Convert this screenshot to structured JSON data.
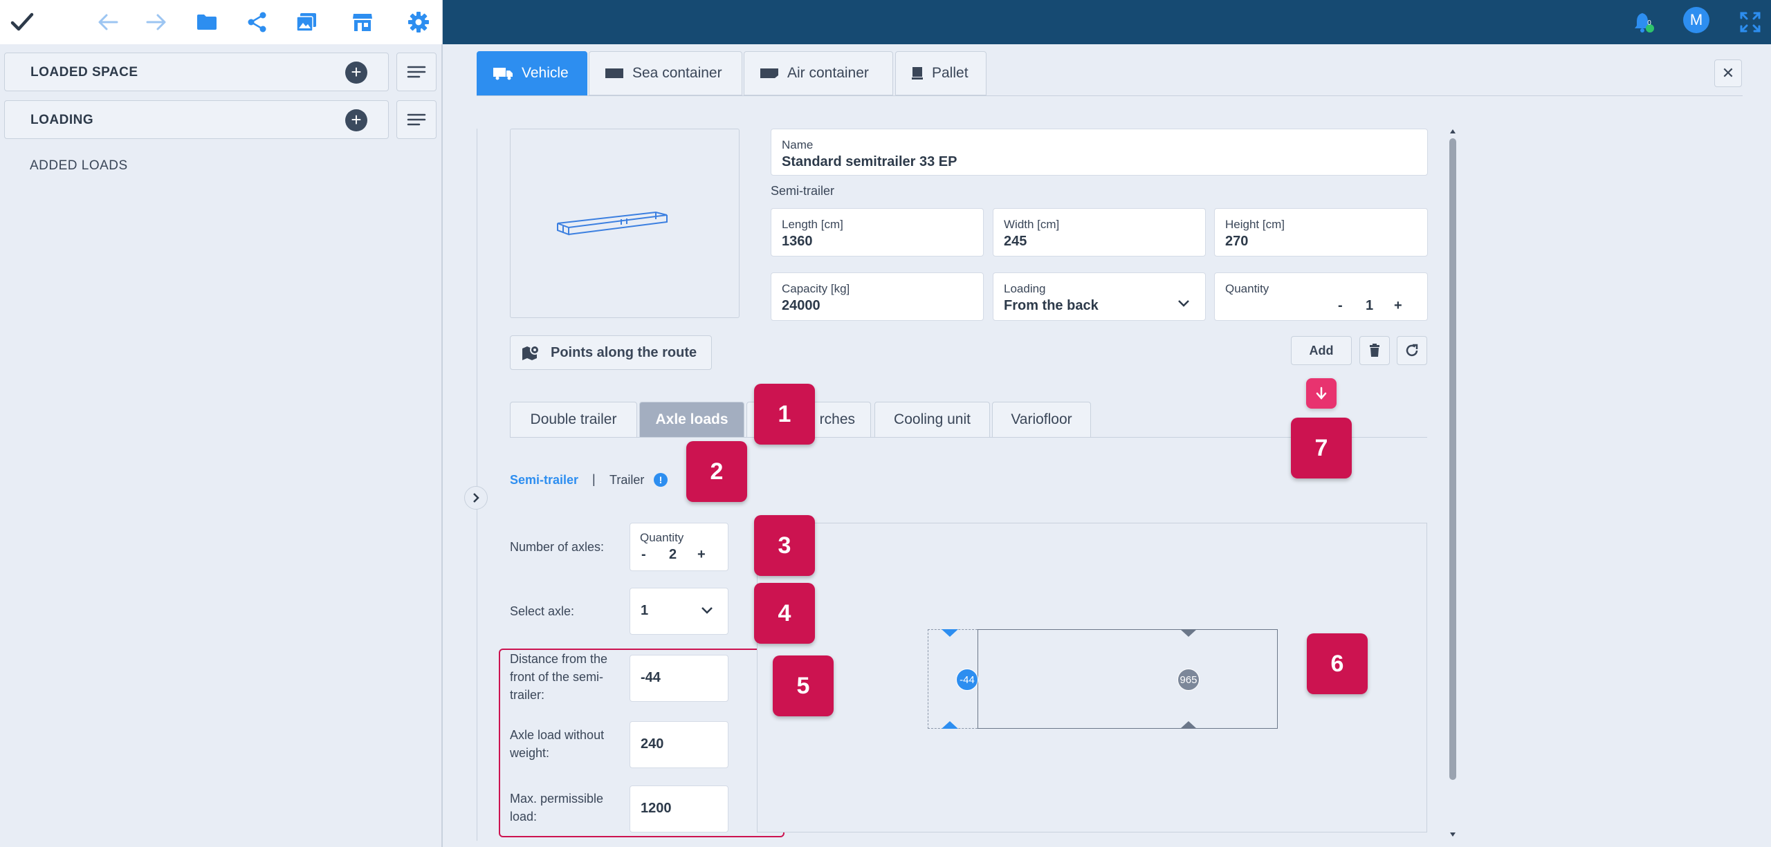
{
  "header": {
    "icons": [
      "check-icon",
      "back-arrow-icon",
      "forward-arrow-icon",
      "folder-icon",
      "share-icon",
      "image-icon",
      "store-icon",
      "gear-icon"
    ],
    "notifications_count": "0",
    "avatar_letter": "M"
  },
  "sidebar": {
    "rows": [
      {
        "label": "LOADED SPACE"
      },
      {
        "label": "LOADING"
      }
    ],
    "added_loads": "ADDED LOADS"
  },
  "tabs": [
    {
      "label": "Vehicle",
      "active": true
    },
    {
      "label": "Sea container",
      "active": false
    },
    {
      "label": "Air container",
      "active": false
    },
    {
      "label": "Pallet",
      "active": false
    }
  ],
  "vehicle": {
    "name_label": "Name",
    "name_value": "Standard semitrailer 33 EP",
    "type": "Semi-trailer",
    "length_label": "Length [cm]",
    "length_value": "1360",
    "width_label": "Width [cm]",
    "width_value": "245",
    "height_label": "Height [cm]",
    "height_value": "270",
    "capacity_label": "Capacity [kg]",
    "capacity_value": "24000",
    "loading_label": "Loading",
    "loading_value": "From the back",
    "quantity_label": "Quantity",
    "quantity_minus": "-",
    "quantity_value": "1",
    "quantity_plus": "+",
    "route_button": "Points along the route",
    "add_button": "Add"
  },
  "subtabs": [
    {
      "label": "Double trailer",
      "active": false
    },
    {
      "label": "Axle loads",
      "active": true
    },
    {
      "label": "rches",
      "active": false
    },
    {
      "label": "Cooling unit",
      "active": false
    },
    {
      "label": "Variofloor",
      "active": false
    }
  ],
  "axle": {
    "semi_trailer": "Semi-trailer",
    "separator": "|",
    "trailer": "Trailer",
    "info_icon": "!",
    "num_axles_label": "Number of axles:",
    "qty_label": "Quantity",
    "qty_minus": "-",
    "qty_value": "2",
    "qty_plus": "+",
    "select_axle_label": "Select axle:",
    "select_axle_value": "1",
    "distance_label": "Distance from the front of the semi-trailer:",
    "distance_value": "-44",
    "axle_load_label": "Axle load without weight:",
    "axle_load_value": "240",
    "max_load_label": "Max. permissible load:",
    "max_load_value": "1200",
    "diagram_axle1": "-44",
    "diagram_axle2": "965"
  },
  "markers": [
    "1",
    "2",
    "3",
    "4",
    "5",
    "6",
    "7"
  ],
  "colors": {
    "topbar": "#164a72",
    "accent_blue": "#2d8ef0",
    "marker": "#cc1350",
    "background": "#e8edf5"
  }
}
